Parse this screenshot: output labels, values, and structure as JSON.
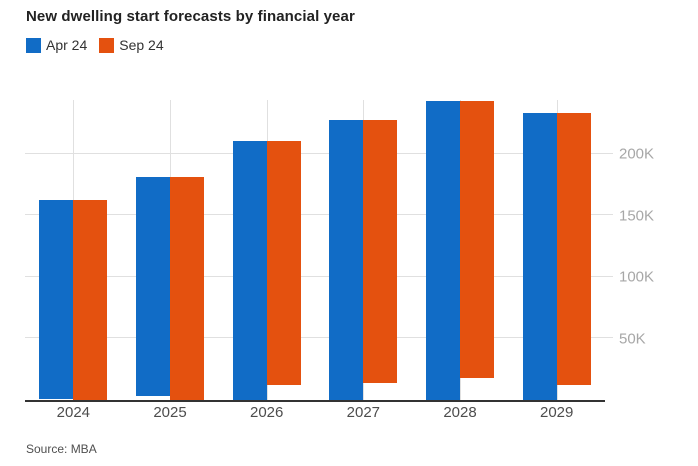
{
  "title": "New dwelling start forecasts by financial year",
  "source": "Source: MBA",
  "colors": {
    "apr_series": "#116CC6",
    "sep_series": "#E4510F",
    "gridline": "#E0E0E0",
    "axis_line": "#333333",
    "y_tick_label": "#A7A7A7",
    "x_tick_label": "#4D4D4D",
    "title_text": "#222222",
    "source_text": "#4F4F4F",
    "background": "#FFFFFF"
  },
  "chart_data": {
    "type": "bar",
    "title": "New dwelling start forecasts by financial year",
    "categories": [
      "2024",
      "2025",
      "2026",
      "2027",
      "2028",
      "2029"
    ],
    "series": [
      {
        "name": "Apr 24",
        "color": "#116CC6",
        "values": [
          161000,
          178000,
          210000,
          227000,
          243000,
          233000
        ]
      },
      {
        "name": "Sep 24",
        "color": "#E4510F",
        "values": [
          162000,
          181000,
          198000,
          213000,
          225000,
          221000
        ]
      }
    ],
    "xlabel": "",
    "ylabel": "",
    "y_ticks": [
      {
        "value": 50000,
        "label": "50K"
      },
      {
        "value": 100000,
        "label": "100K"
      },
      {
        "value": 150000,
        "label": "150K"
      },
      {
        "value": 200000,
        "label": "200K"
      }
    ],
    "ylim": [
      0,
      243500
    ],
    "grid": true,
    "legend_position": "top-left",
    "y_axis_side": "right",
    "source": "Source: MBA"
  }
}
